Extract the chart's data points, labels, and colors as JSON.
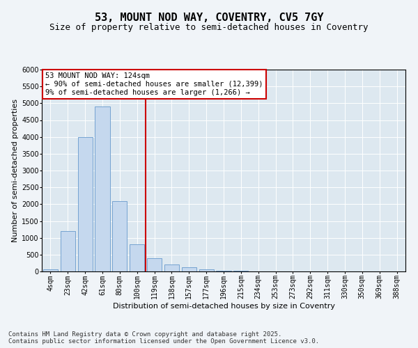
{
  "title_line1": "53, MOUNT NOD WAY, COVENTRY, CV5 7GY",
  "title_line2": "Size of property relative to semi-detached houses in Coventry",
  "xlabel": "Distribution of semi-detached houses by size in Coventry",
  "ylabel": "Number of semi-detached properties",
  "categories": [
    "4sqm",
    "23sqm",
    "42sqm",
    "61sqm",
    "80sqm",
    "100sqm",
    "119sqm",
    "138sqm",
    "157sqm",
    "177sqm",
    "196sqm",
    "215sqm",
    "234sqm",
    "253sqm",
    "273sqm",
    "292sqm",
    "311sqm",
    "330sqm",
    "350sqm",
    "369sqm",
    "388sqm"
  ],
  "values": [
    60,
    1200,
    4000,
    4900,
    2100,
    800,
    390,
    200,
    130,
    60,
    30,
    15,
    0,
    0,
    0,
    0,
    0,
    0,
    0,
    0,
    0
  ],
  "bar_color": "#c5d8ee",
  "bar_edge_color": "#6699cc",
  "vline_color": "#cc0000",
  "annotation_text": "53 MOUNT NOD WAY: 124sqm\n← 90% of semi-detached houses are smaller (12,399)\n9% of semi-detached houses are larger (1,266) →",
  "annotation_box_color": "#ffffff",
  "annotation_box_edge_color": "#cc0000",
  "ylim": [
    0,
    6000
  ],
  "yticks": [
    0,
    500,
    1000,
    1500,
    2000,
    2500,
    3000,
    3500,
    4000,
    4500,
    5000,
    5500,
    6000
  ],
  "background_color": "#dde8f0",
  "grid_color": "#ffffff",
  "footer_line1": "Contains HM Land Registry data © Crown copyright and database right 2025.",
  "footer_line2": "Contains public sector information licensed under the Open Government Licence v3.0.",
  "title_fontsize": 11,
  "subtitle_fontsize": 9,
  "axis_label_fontsize": 8,
  "tick_fontsize": 7,
  "annotation_fontsize": 7.5,
  "footer_fontsize": 6.5,
  "fig_bg_color": "#f0f4f8"
}
